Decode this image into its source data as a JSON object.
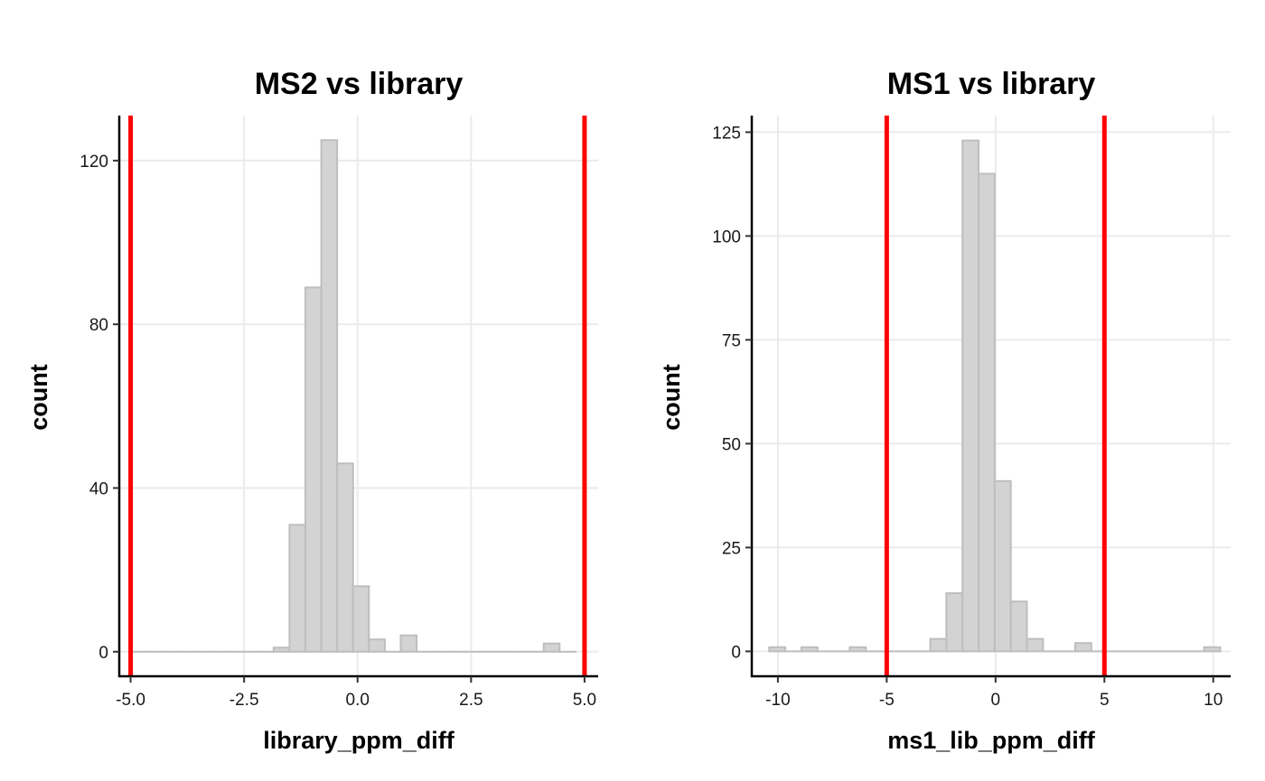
{
  "chart_data": [
    {
      "type": "histogram",
      "title": "MS2 vs library",
      "xlabel": "library_ppm_diff",
      "ylabel": "count",
      "xlim": [
        -5.25,
        5.3
      ],
      "ylim": [
        -6,
        131
      ],
      "xticks": [
        -5.0,
        -2.5,
        0.0,
        2.5,
        5.0
      ],
      "xtick_labels": [
        "-5.0",
        "-2.5",
        "0.0",
        "2.5",
        "5.0"
      ],
      "yticks": [
        0,
        40,
        80,
        120
      ],
      "ytick_labels": [
        "0",
        "40",
        "80",
        "120"
      ],
      "bin_width": 0.35,
      "bins": [
        {
          "x0": -5.0,
          "count": 0
        },
        {
          "x0": -4.65,
          "count": 0
        },
        {
          "x0": -4.3,
          "count": 0
        },
        {
          "x0": -3.95,
          "count": 0
        },
        {
          "x0": -3.6,
          "count": 0
        },
        {
          "x0": -3.25,
          "count": 0
        },
        {
          "x0": -2.9,
          "count": 0
        },
        {
          "x0": -2.55,
          "count": 0
        },
        {
          "x0": -2.2,
          "count": 0
        },
        {
          "x0": -1.85,
          "count": 1
        },
        {
          "x0": -1.5,
          "count": 31
        },
        {
          "x0": -1.15,
          "count": 89
        },
        {
          "x0": -0.8,
          "count": 125
        },
        {
          "x0": -0.45,
          "count": 46
        },
        {
          "x0": -0.1,
          "count": 16
        },
        {
          "x0": 0.25,
          "count": 3
        },
        {
          "x0": 0.6,
          "count": 0
        },
        {
          "x0": 0.95,
          "count": 4
        },
        {
          "x0": 1.3,
          "count": 0
        },
        {
          "x0": 1.65,
          "count": 0
        },
        {
          "x0": 2.0,
          "count": 0
        },
        {
          "x0": 2.35,
          "count": 0
        },
        {
          "x0": 2.7,
          "count": 0
        },
        {
          "x0": 3.05,
          "count": 0
        },
        {
          "x0": 3.4,
          "count": 0
        },
        {
          "x0": 3.75,
          "count": 0
        },
        {
          "x0": 4.1,
          "count": 2
        },
        {
          "x0": 4.45,
          "count": 0
        }
      ],
      "vlines": [
        -5,
        5
      ],
      "vline_color": "#ff0000",
      "bar_fill": "#d3d3d3",
      "bar_stroke": "#bebebe",
      "grid": true
    },
    {
      "type": "histogram",
      "title": "MS1 vs library",
      "xlabel": "ms1_lib_ppm_diff",
      "ylabel": "count",
      "xlim": [
        -11.2,
        10.8
      ],
      "ylim": [
        -6,
        129
      ],
      "xticks": [
        -10,
        -5,
        0,
        5,
        10
      ],
      "xtick_labels": [
        "-10",
        "-5",
        "0",
        "5",
        "10"
      ],
      "yticks": [
        0,
        25,
        50,
        75,
        100,
        125
      ],
      "ytick_labels": [
        "0",
        "25",
        "50",
        "75",
        "100",
        "125"
      ],
      "bin_width": 0.74,
      "bins": [
        {
          "x0": -10.4,
          "count": 1
        },
        {
          "x0": -9.66,
          "count": 0
        },
        {
          "x0": -8.92,
          "count": 1
        },
        {
          "x0": -8.18,
          "count": 0
        },
        {
          "x0": -7.44,
          "count": 0
        },
        {
          "x0": -6.7,
          "count": 1
        },
        {
          "x0": -5.96,
          "count": 0
        },
        {
          "x0": -5.22,
          "count": 0
        },
        {
          "x0": -4.48,
          "count": 0
        },
        {
          "x0": -3.74,
          "count": 0
        },
        {
          "x0": -3.0,
          "count": 3
        },
        {
          "x0": -2.26,
          "count": 14
        },
        {
          "x0": -1.52,
          "count": 123
        },
        {
          "x0": -0.78,
          "count": 115
        },
        {
          "x0": -0.04,
          "count": 41
        },
        {
          "x0": 0.7,
          "count": 12
        },
        {
          "x0": 1.44,
          "count": 3
        },
        {
          "x0": 2.18,
          "count": 0
        },
        {
          "x0": 2.92,
          "count": 0
        },
        {
          "x0": 3.66,
          "count": 2
        },
        {
          "x0": 4.4,
          "count": 0
        },
        {
          "x0": 5.14,
          "count": 0
        },
        {
          "x0": 5.88,
          "count": 0
        },
        {
          "x0": 6.62,
          "count": 0
        },
        {
          "x0": 7.36,
          "count": 0
        },
        {
          "x0": 8.1,
          "count": 0
        },
        {
          "x0": 8.84,
          "count": 0
        },
        {
          "x0": 9.58,
          "count": 1
        }
      ],
      "vlines": [
        -5,
        5
      ],
      "vline_color": "#ff0000",
      "bar_fill": "#d3d3d3",
      "bar_stroke": "#bebebe",
      "grid": true
    }
  ]
}
